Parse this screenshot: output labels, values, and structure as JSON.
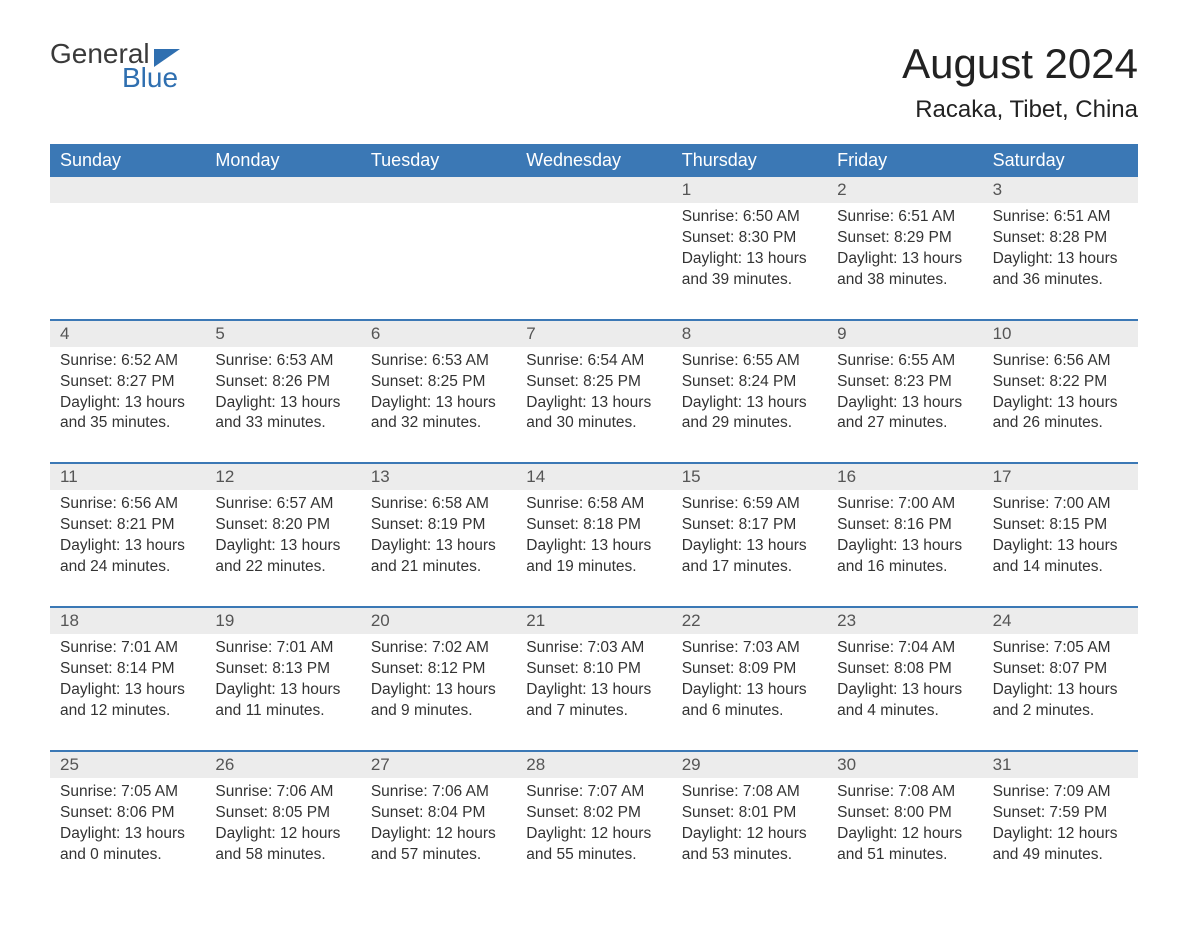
{
  "logo": {
    "text_general": "General",
    "text_blue": "Blue"
  },
  "header": {
    "month_title": "August 2024",
    "location": "Racaka, Tibet, China"
  },
  "colors": {
    "header_bg": "#3b78b5",
    "header_text": "#ffffff",
    "daynum_bg": "#ececec",
    "border": "#3b78b5",
    "logo_accent": "#2f6fb0"
  },
  "weekdays": [
    "Sunday",
    "Monday",
    "Tuesday",
    "Wednesday",
    "Thursday",
    "Friday",
    "Saturday"
  ],
  "weeks": [
    [
      {
        "n": "",
        "empty": true
      },
      {
        "n": "",
        "empty": true
      },
      {
        "n": "",
        "empty": true
      },
      {
        "n": "",
        "empty": true
      },
      {
        "n": "1",
        "sunrise": "Sunrise: 6:50 AM",
        "sunset": "Sunset: 8:30 PM",
        "daylight": "Daylight: 13 hours and 39 minutes."
      },
      {
        "n": "2",
        "sunrise": "Sunrise: 6:51 AM",
        "sunset": "Sunset: 8:29 PM",
        "daylight": "Daylight: 13 hours and 38 minutes."
      },
      {
        "n": "3",
        "sunrise": "Sunrise: 6:51 AM",
        "sunset": "Sunset: 8:28 PM",
        "daylight": "Daylight: 13 hours and 36 minutes."
      }
    ],
    [
      {
        "n": "4",
        "sunrise": "Sunrise: 6:52 AM",
        "sunset": "Sunset: 8:27 PM",
        "daylight": "Daylight: 13 hours and 35 minutes."
      },
      {
        "n": "5",
        "sunrise": "Sunrise: 6:53 AM",
        "sunset": "Sunset: 8:26 PM",
        "daylight": "Daylight: 13 hours and 33 minutes."
      },
      {
        "n": "6",
        "sunrise": "Sunrise: 6:53 AM",
        "sunset": "Sunset: 8:25 PM",
        "daylight": "Daylight: 13 hours and 32 minutes."
      },
      {
        "n": "7",
        "sunrise": "Sunrise: 6:54 AM",
        "sunset": "Sunset: 8:25 PM",
        "daylight": "Daylight: 13 hours and 30 minutes."
      },
      {
        "n": "8",
        "sunrise": "Sunrise: 6:55 AM",
        "sunset": "Sunset: 8:24 PM",
        "daylight": "Daylight: 13 hours and 29 minutes."
      },
      {
        "n": "9",
        "sunrise": "Sunrise: 6:55 AM",
        "sunset": "Sunset: 8:23 PM",
        "daylight": "Daylight: 13 hours and 27 minutes."
      },
      {
        "n": "10",
        "sunrise": "Sunrise: 6:56 AM",
        "sunset": "Sunset: 8:22 PM",
        "daylight": "Daylight: 13 hours and 26 minutes."
      }
    ],
    [
      {
        "n": "11",
        "sunrise": "Sunrise: 6:56 AM",
        "sunset": "Sunset: 8:21 PM",
        "daylight": "Daylight: 13 hours and 24 minutes."
      },
      {
        "n": "12",
        "sunrise": "Sunrise: 6:57 AM",
        "sunset": "Sunset: 8:20 PM",
        "daylight": "Daylight: 13 hours and 22 minutes."
      },
      {
        "n": "13",
        "sunrise": "Sunrise: 6:58 AM",
        "sunset": "Sunset: 8:19 PM",
        "daylight": "Daylight: 13 hours and 21 minutes."
      },
      {
        "n": "14",
        "sunrise": "Sunrise: 6:58 AM",
        "sunset": "Sunset: 8:18 PM",
        "daylight": "Daylight: 13 hours and 19 minutes."
      },
      {
        "n": "15",
        "sunrise": "Sunrise: 6:59 AM",
        "sunset": "Sunset: 8:17 PM",
        "daylight": "Daylight: 13 hours and 17 minutes."
      },
      {
        "n": "16",
        "sunrise": "Sunrise: 7:00 AM",
        "sunset": "Sunset: 8:16 PM",
        "daylight": "Daylight: 13 hours and 16 minutes."
      },
      {
        "n": "17",
        "sunrise": "Sunrise: 7:00 AM",
        "sunset": "Sunset: 8:15 PM",
        "daylight": "Daylight: 13 hours and 14 minutes."
      }
    ],
    [
      {
        "n": "18",
        "sunrise": "Sunrise: 7:01 AM",
        "sunset": "Sunset: 8:14 PM",
        "daylight": "Daylight: 13 hours and 12 minutes."
      },
      {
        "n": "19",
        "sunrise": "Sunrise: 7:01 AM",
        "sunset": "Sunset: 8:13 PM",
        "daylight": "Daylight: 13 hours and 11 minutes."
      },
      {
        "n": "20",
        "sunrise": "Sunrise: 7:02 AM",
        "sunset": "Sunset: 8:12 PM",
        "daylight": "Daylight: 13 hours and 9 minutes."
      },
      {
        "n": "21",
        "sunrise": "Sunrise: 7:03 AM",
        "sunset": "Sunset: 8:10 PM",
        "daylight": "Daylight: 13 hours and 7 minutes."
      },
      {
        "n": "22",
        "sunrise": "Sunrise: 7:03 AM",
        "sunset": "Sunset: 8:09 PM",
        "daylight": "Daylight: 13 hours and 6 minutes."
      },
      {
        "n": "23",
        "sunrise": "Sunrise: 7:04 AM",
        "sunset": "Sunset: 8:08 PM",
        "daylight": "Daylight: 13 hours and 4 minutes."
      },
      {
        "n": "24",
        "sunrise": "Sunrise: 7:05 AM",
        "sunset": "Sunset: 8:07 PM",
        "daylight": "Daylight: 13 hours and 2 minutes."
      }
    ],
    [
      {
        "n": "25",
        "sunrise": "Sunrise: 7:05 AM",
        "sunset": "Sunset: 8:06 PM",
        "daylight": "Daylight: 13 hours and 0 minutes."
      },
      {
        "n": "26",
        "sunrise": "Sunrise: 7:06 AM",
        "sunset": "Sunset: 8:05 PM",
        "daylight": "Daylight: 12 hours and 58 minutes."
      },
      {
        "n": "27",
        "sunrise": "Sunrise: 7:06 AM",
        "sunset": "Sunset: 8:04 PM",
        "daylight": "Daylight: 12 hours and 57 minutes."
      },
      {
        "n": "28",
        "sunrise": "Sunrise: 7:07 AM",
        "sunset": "Sunset: 8:02 PM",
        "daylight": "Daylight: 12 hours and 55 minutes."
      },
      {
        "n": "29",
        "sunrise": "Sunrise: 7:08 AM",
        "sunset": "Sunset: 8:01 PM",
        "daylight": "Daylight: 12 hours and 53 minutes."
      },
      {
        "n": "30",
        "sunrise": "Sunrise: 7:08 AM",
        "sunset": "Sunset: 8:00 PM",
        "daylight": "Daylight: 12 hours and 51 minutes."
      },
      {
        "n": "31",
        "sunrise": "Sunrise: 7:09 AM",
        "sunset": "Sunset: 7:59 PM",
        "daylight": "Daylight: 12 hours and 49 minutes."
      }
    ]
  ]
}
